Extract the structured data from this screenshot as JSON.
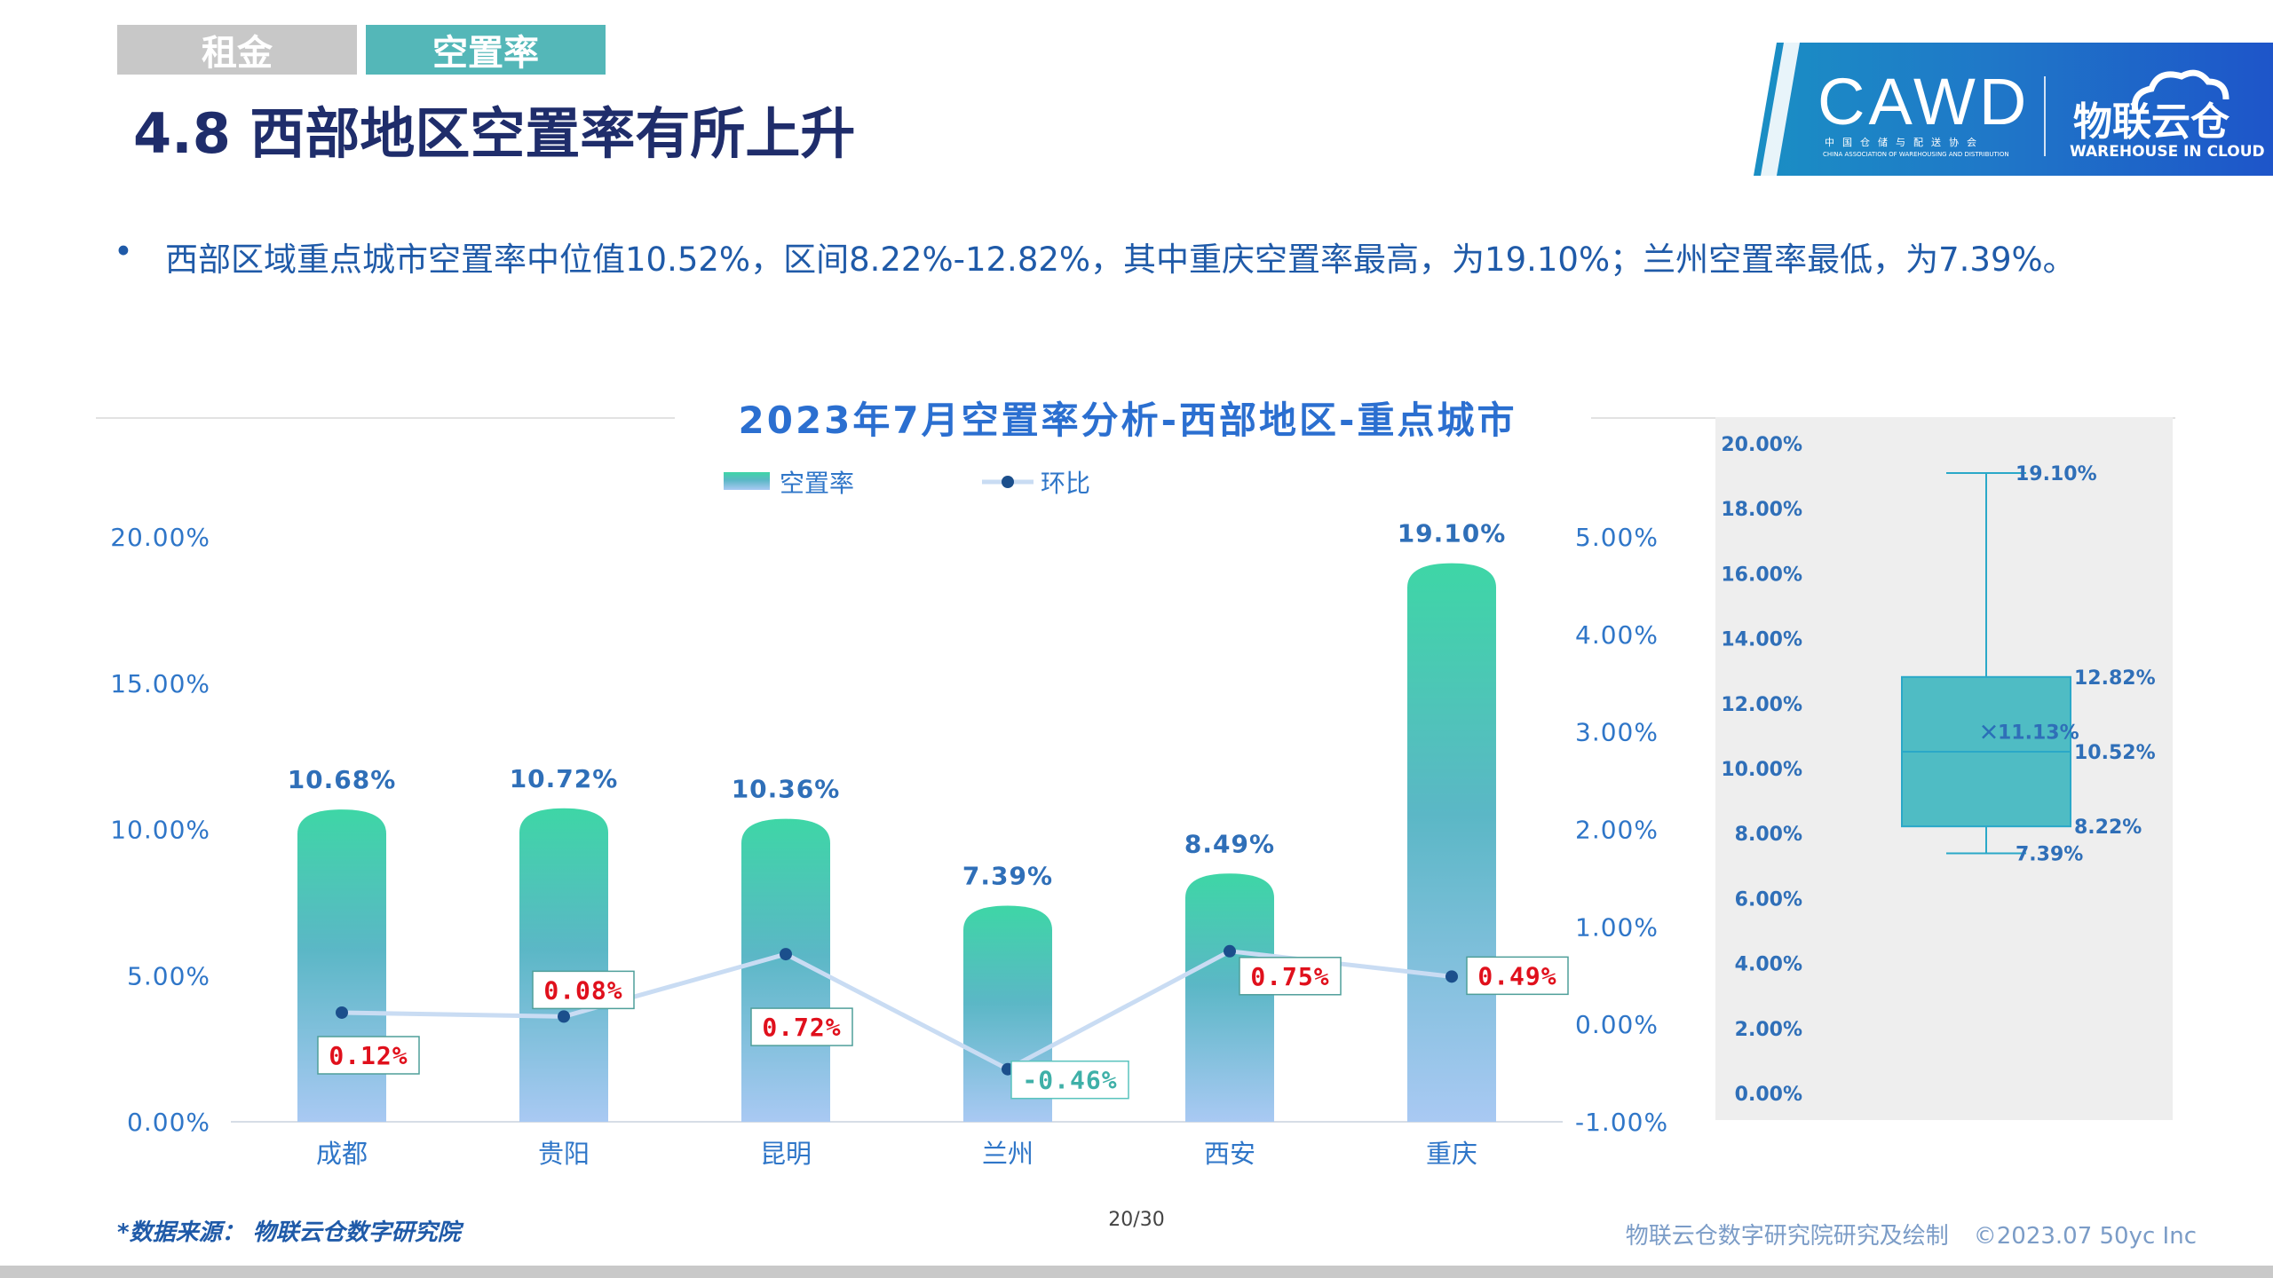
{
  "tabs": [
    {
      "label": "租金",
      "active": false
    },
    {
      "label": "空置率",
      "active": true
    }
  ],
  "page_title": "4.8 西部地区空置率有所上升",
  "logo": {
    "main_text": "CAWD",
    "cn_subtitle": "中国仓储与配送协会",
    "en_subtitle": "CHINA ASSOCIATION OF WAREHOUSING AND DISTRIBUTION",
    "brand_cn": "物联云仓",
    "brand_en": "WAREHOUSE IN CLOUD"
  },
  "bullet": {
    "dot": "•",
    "text": "西部区域重点城市空置率中位值10.52%，区间8.22%-12.82%，其中重庆空置率最高，为19.10%；兰州空置率最低，为7.39%。"
  },
  "chart_data": [
    {
      "type": "bar",
      "title": "2023年7月空置率分析-西部地区-重点城市",
      "categories": [
        "成都",
        "贵阳",
        "昆明",
        "兰州",
        "西安",
        "重庆"
      ],
      "series": [
        {
          "name": "空置率",
          "type": "bar",
          "axis": "left",
          "values": [
            10.68,
            10.72,
            10.36,
            7.39,
            8.49,
            19.1
          ],
          "labels": [
            "10.68%",
            "10.72%",
            "10.36%",
            "7.39%",
            "8.49%",
            "19.10%"
          ]
        },
        {
          "name": "环比",
          "type": "line",
          "axis": "right",
          "values": [
            0.12,
            0.08,
            0.72,
            -0.46,
            0.75,
            0.49
          ],
          "labels": [
            "0.12%",
            "0.08%",
            "0.72%",
            "-0.46%",
            "0.75%",
            "0.49%"
          ]
        }
      ],
      "y_left": {
        "range": [
          0,
          20
        ],
        "ticks": [
          "0.00%",
          "5.00%",
          "10.00%",
          "15.00%",
          "20.00%"
        ]
      },
      "y_right": {
        "range": [
          -1,
          5
        ],
        "ticks": [
          "-1.00%",
          "0.00%",
          "1.00%",
          "2.00%",
          "3.00%",
          "4.00%",
          "5.00%"
        ]
      },
      "legend_position": "top",
      "grid": false,
      "colors": {
        "bar_top": "#3ed6a6",
        "bar_mid": "#5bb7c6",
        "bar_bottom": "#a9c9f3",
        "line": "#c9dcf3",
        "marker": "#1b4f8c",
        "label_pos": "#e0101c",
        "label_neg": "#3fb0a8"
      }
    },
    {
      "type": "box",
      "y_range": [
        0,
        20
      ],
      "ticks": [
        "0.00%",
        "2.00%",
        "4.00%",
        "6.00%",
        "8.00%",
        "10.00%",
        "12.00%",
        "14.00%",
        "16.00%",
        "18.00%",
        "20.00%"
      ],
      "min": 7.39,
      "q1": 8.22,
      "median": 10.52,
      "mean": 11.13,
      "q3": 12.82,
      "max": 19.1,
      "labels": {
        "min": "7.39%",
        "q1": "8.22%",
        "median": "10.52%",
        "mean": "11.13%",
        "q3": "12.82%",
        "max": "19.10%"
      },
      "colors": {
        "box": "#4fbcc4",
        "stroke": "#2aa8c8"
      }
    }
  ],
  "footer": {
    "source": "*数据来源：  物联云仓数字研究院",
    "page": "20/30",
    "credit": "物联云仓数字研究院研究及绘制",
    "copyright": "©2023.07 50yc Inc"
  }
}
